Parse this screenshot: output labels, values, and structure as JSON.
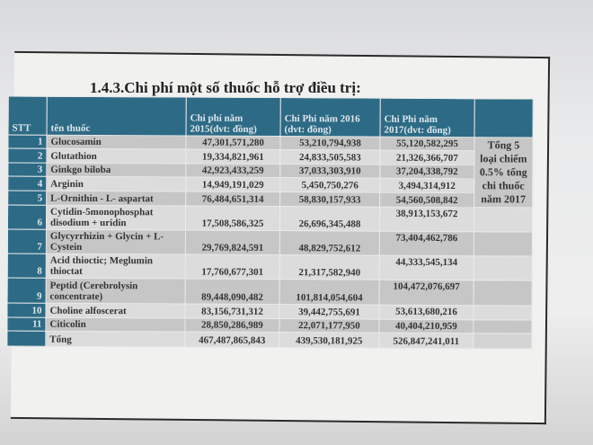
{
  "title": "1.4.3.Chi phí một số thuốc hỗ trợ điều trị:",
  "headers": [
    "STT",
    "tên thuốc",
    "Chi phí năm 2015(dvt: đồng)",
    "Chi Phi năm 2016 (dvt: đồng)",
    "Chi Phi năm 2017(dvt: đồng)",
    ""
  ],
  "rows": [
    {
      "stt": "1",
      "name": "Glucosamin",
      "y2015": "47,301,571,280",
      "y2016": "53,210,794,938",
      "y2017": "55,120,582,295"
    },
    {
      "stt": "2",
      "name": "Glutathion",
      "y2015": "19,334,821,961",
      "y2016": "24,833,505,583",
      "y2017": "21,326,366,707"
    },
    {
      "stt": "3",
      "name": "Ginkgo biloba",
      "y2015": "42,923,433,259",
      "y2016": "37,033,303,910",
      "y2017": "37,204,338,792"
    },
    {
      "stt": "4",
      "name": "Arginin",
      "y2015": "14,949,191,029",
      "y2016": "5,450,750,276",
      "y2017": "3,494,314,912"
    },
    {
      "stt": "5",
      "name": "L-Ornithin - L- aspartat",
      "y2015": "76,484,651,314",
      "y2016": "58,830,157,933",
      "y2017": "54,560,508,842"
    },
    {
      "stt": "6",
      "name": "Cytidin-5monophosphat disodium + uridin",
      "y2015": "17,508,586,325",
      "y2016": "26,696,345,488",
      "y2017": "38,913,153,672"
    },
    {
      "stt": "7",
      "name": "Glycyrrhizin + Glycin + L-Cystein",
      "y2015": "29,769,824,591",
      "y2016": "48,829,752,612",
      "y2017": "73,404,462,786"
    },
    {
      "stt": "8",
      "name": "Acid thioctic; Meglumin thioctat",
      "y2015": "17,760,677,301",
      "y2016": "21,317,582,940",
      "y2017": "44,333,545,134"
    },
    {
      "stt": "9",
      "name": "Peptid (Cerebrolysin concentrate)",
      "y2015": "89,448,090,482",
      "y2016": "101,814,054,604",
      "y2017": "104,472,076,697"
    },
    {
      "stt": "10",
      "name": "Choline alfoscerat",
      "y2015": "83,156,731,312",
      "y2016": "39,442,755,691",
      "y2017": "53,613,680,216"
    },
    {
      "stt": "11",
      "name": "Citicolin",
      "y2015": "28,850,286,989",
      "y2016": "22,071,177,950",
      "y2017": "40,404,210,959"
    }
  ],
  "total": {
    "label": "Tổng",
    "y2015": "467,487,865,843",
    "y2016": "439,530,181,925",
    "y2017": "526,847,241,011"
  },
  "note": "Tổng 5 loại chiếm 0.5% tổng chi thuốc năm 2017"
}
